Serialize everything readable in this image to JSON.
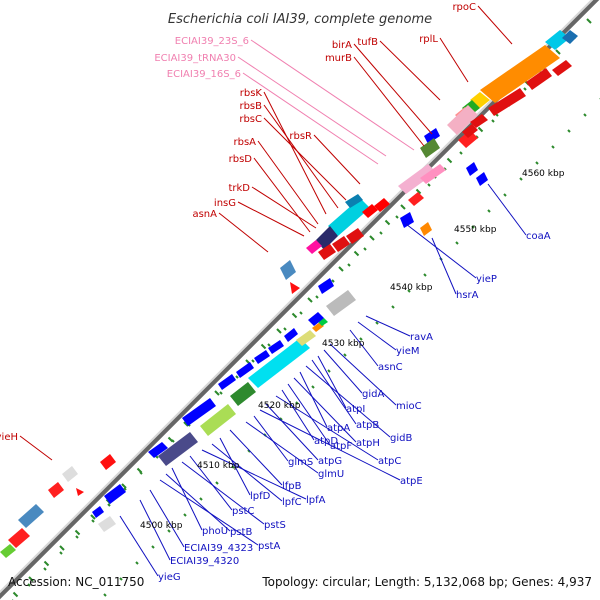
{
  "title": "Escherichia coli IAI39, complete genome",
  "footer": {
    "accession": "Accession: NC_011750",
    "topology": "Topology: circular; Length: 5,132,068 bp; Genes: 4,937"
  },
  "colors": {
    "red_label": "#c00000",
    "blue_label": "#1010c0",
    "pink_label": "#f080b0",
    "backbone": "#8c8c8c",
    "tick": "#2c8a2c"
  },
  "ticks": [
    "4500 kbp",
    "4510 kbp",
    "4520 kbp",
    "4530 kbp",
    "4540 kbp",
    "4550 kbp",
    "4560 kbp"
  ],
  "labels_red": [
    "rpoC",
    "rplL",
    "tufB",
    "birA",
    "murB",
    "rbsK",
    "rbsB",
    "rbsC",
    "rbsR",
    "rbsA",
    "rbsD",
    "trkD",
    "insG",
    "asnA",
    "yieH"
  ],
  "labels_pink": [
    "ECIAI39_23S_6",
    "ECIAI39_tRNA30",
    "ECIAI39_16S_6"
  ],
  "labels_blue": [
    "coaA",
    "yieP",
    "hsrA",
    "ravA",
    "yieM",
    "asnC",
    "mioC",
    "gidA",
    "atpI",
    "atpB",
    "gidB",
    "atpA",
    "atpH",
    "atpF",
    "atpD",
    "atpC",
    "atpG",
    "atpE",
    "glmS",
    "glmU",
    "lfpB",
    "lpfD",
    "lpfC",
    "lpfA",
    "pstC",
    "pstS",
    "phoU",
    "pstB",
    "pstA",
    "ECIAI39_4323",
    "ECIAI39_4320",
    "yieG"
  ]
}
